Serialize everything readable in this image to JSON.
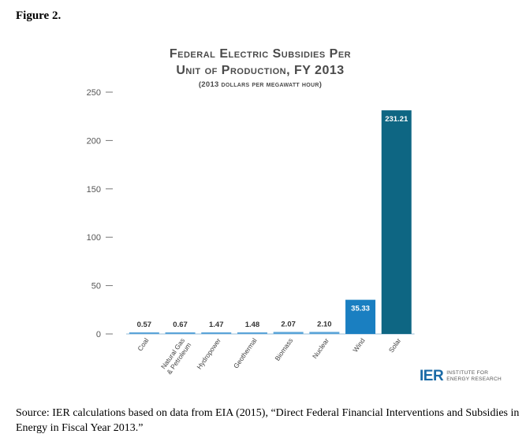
{
  "figure_label": "Figure 2.",
  "chart_data": {
    "type": "bar",
    "title_line1": "Federal Electric Subsidies Per",
    "title_line2": "Unit of Production, FY 2013",
    "subtitle": "(2013 dollars per megawatt hour)",
    "categories": [
      "Coal",
      "Natural Gas & Petroleum",
      "Hydropower",
      "Geothermal",
      "Biomass",
      "Nuclear",
      "Wind",
      "Solar"
    ],
    "values": [
      0.57,
      0.67,
      1.47,
      1.48,
      2.07,
      2.1,
      35.33,
      231.21
    ],
    "value_labels": [
      "0.57",
      "0.67",
      "1.47",
      "1.48",
      "2.07",
      "2.10",
      "35.33",
      "231.21"
    ],
    "yticks": [
      "0",
      "50",
      "100",
      "150",
      "200",
      "250"
    ],
    "ylim": [
      0,
      250
    ],
    "colors": {
      "small": "#5aa4d8",
      "wind": "#1a7fc1",
      "solar": "#0e6683"
    }
  },
  "logo": {
    "mark": "IER",
    "line1": "INSTITUTE FOR",
    "line2": "ENERGY RESEARCH"
  },
  "source_text": "Source: IER calculations based on data from EIA (2015), “Direct Federal Financial Interventions and Subsidies in Energy in Fiscal Year 2013.”"
}
